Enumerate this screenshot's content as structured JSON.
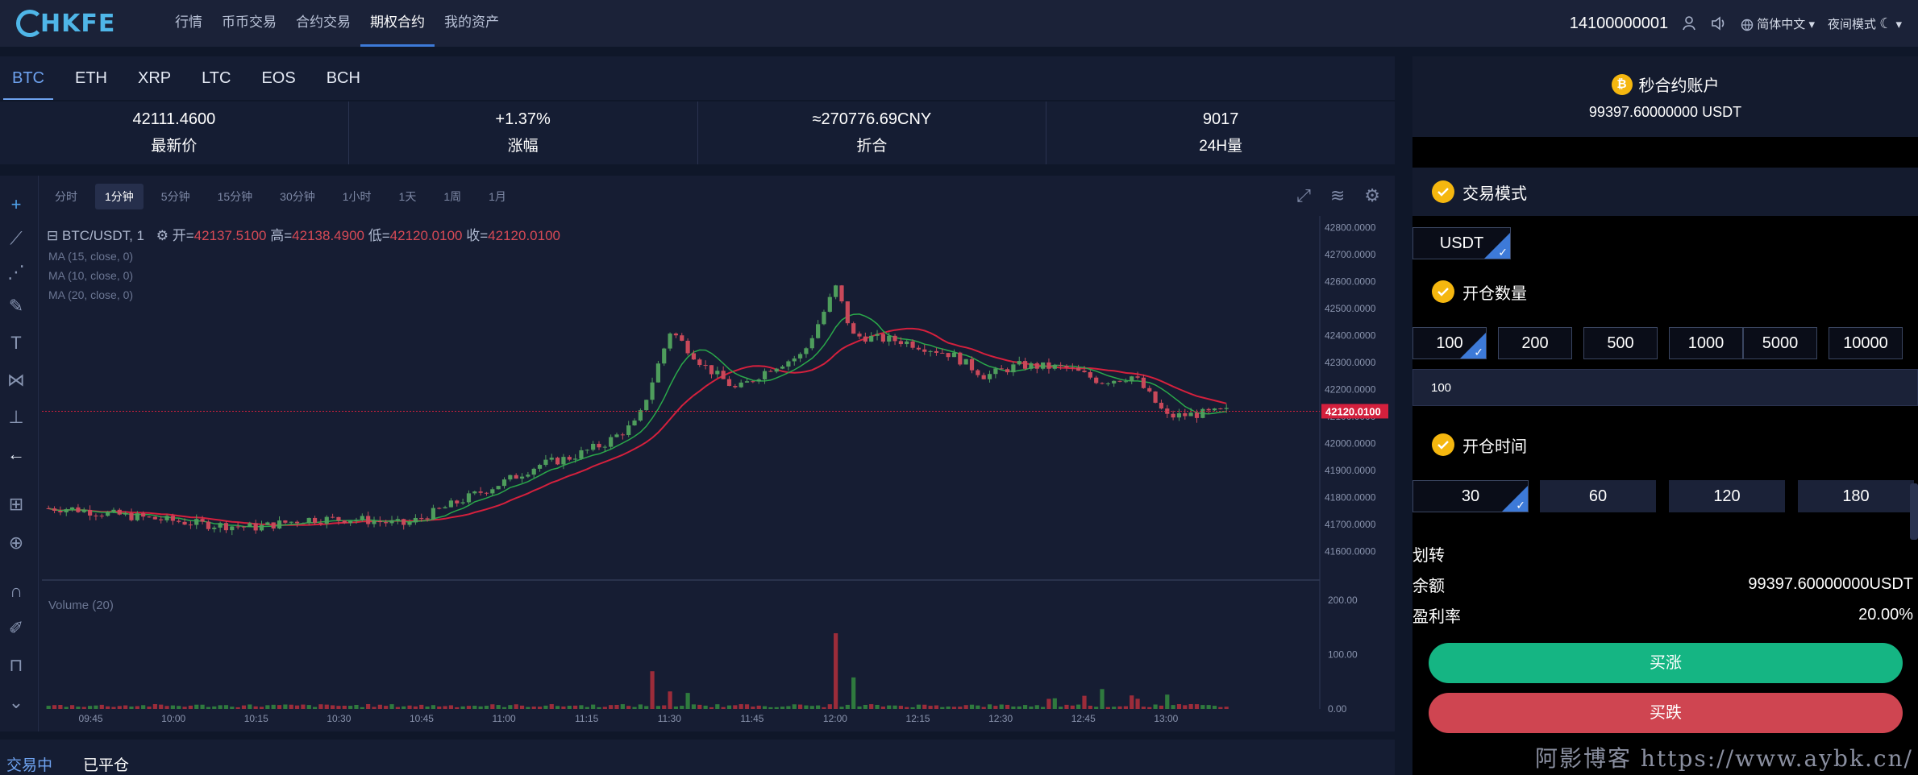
{
  "brand": {
    "logo_text": "HKFE"
  },
  "nav": [
    {
      "label": "行情"
    },
    {
      "label": "币币交易"
    },
    {
      "label": "合约交易"
    },
    {
      "label": "期权合约",
      "active": true
    },
    {
      "label": "我的资产"
    }
  ],
  "header": {
    "phone": "14100000001",
    "language": "简体中文",
    "night_mode": "夜间模式"
  },
  "coins": [
    "BTC",
    "ETH",
    "XRP",
    "LTC",
    "EOS",
    "BCH"
  ],
  "active_coin": "BTC",
  "stats": [
    {
      "value": "42111.4600",
      "label": "最新价"
    },
    {
      "value": "+1.37%",
      "label": "涨幅"
    },
    {
      "value": "≈270776.69CNY",
      "label": "折合"
    },
    {
      "value": "9017",
      "label": "24H量"
    }
  ],
  "chart_toolbar": {
    "intervals": [
      "分时",
      "1分钟",
      "5分钟",
      "15分钟",
      "30分钟",
      "1小时",
      "1天",
      "1周",
      "1月"
    ],
    "active_interval": "1分钟"
  },
  "chart_legend": {
    "symbol": "BTC/USDT, 1",
    "open_label": "开=",
    "open": "42137.5100",
    "high_label": "高=",
    "high": "42138.4900",
    "low_label": "低=",
    "low": "42120.0100",
    "close_label": "收=",
    "close": "42120.0100",
    "ma": [
      "MA (15, close, 0)",
      "MA (10, close, 0)",
      "MA (20, close, 0)"
    ],
    "volume": "Volume (20)"
  },
  "chart_data": {
    "type": "line",
    "x_ticks": [
      "09:45",
      "10:00",
      "10:15",
      "10:30",
      "10:45",
      "11:00",
      "11:15",
      "11:30",
      "11:45",
      "12:00",
      "12:15",
      "12:30",
      "12:45",
      "13:00"
    ],
    "y_ticks": [
      "42800.0000",
      "42700.0000",
      "42600.0000",
      "42500.0000",
      "42400.0000",
      "42300.0000",
      "42200.0000",
      "42100.0000",
      "42000.0000",
      "41900.0000",
      "41800.0000",
      "41700.0000",
      "41600.0000"
    ],
    "ylim": [
      41560,
      42820
    ],
    "current_price": "42120.0100",
    "volume_ticks": [
      "200.00",
      "100.00",
      "0.00"
    ],
    "volume_ylim": [
      0,
      210
    ],
    "price_path": [
      [
        9.68,
        41760
      ],
      [
        9.8,
        41740
      ],
      [
        9.95,
        41720
      ],
      [
        10.1,
        41700
      ],
      [
        10.25,
        41690
      ],
      [
        10.4,
        41720
      ],
      [
        10.55,
        41720
      ],
      [
        10.7,
        41700
      ],
      [
        10.85,
        41780
      ],
      [
        11.0,
        41860
      ],
      [
        11.1,
        41920
      ],
      [
        11.2,
        41950
      ],
      [
        11.3,
        42000
      ],
      [
        11.4,
        42080
      ],
      [
        11.5,
        42420
      ],
      [
        11.6,
        42290
      ],
      [
        11.7,
        42200
      ],
      [
        11.8,
        42280
      ],
      [
        11.9,
        42330
      ],
      [
        12.0,
        42580
      ],
      [
        12.05,
        42400
      ],
      [
        12.2,
        42380
      ],
      [
        12.35,
        42330
      ],
      [
        12.45,
        42250
      ],
      [
        12.55,
        42290
      ],
      [
        12.7,
        42280
      ],
      [
        12.8,
        42230
      ],
      [
        12.9,
        42250
      ],
      [
        13.0,
        42100
      ],
      [
        13.1,
        42110
      ],
      [
        13.18,
        42120
      ]
    ],
    "volume_bars": [
      [
        11.45,
        90
      ],
      [
        11.5,
        40
      ],
      [
        11.55,
        30
      ],
      [
        12.0,
        190
      ],
      [
        12.05,
        60
      ],
      [
        12.65,
        25
      ],
      [
        12.75,
        25
      ],
      [
        12.8,
        40
      ],
      [
        12.9,
        25
      ],
      [
        13.0,
        30
      ]
    ]
  },
  "account": {
    "title": "秒合约账户",
    "balance": "99397.60000000 USDT"
  },
  "trade_mode": {
    "title": "交易模式",
    "currency": "USDT"
  },
  "open_amount": {
    "title": "开仓数量",
    "options": [
      "100",
      "200",
      "500",
      "1000",
      "5000",
      "10000"
    ],
    "input_value": "100"
  },
  "open_time": {
    "title": "开仓时间",
    "options": [
      "30",
      "60",
      "120",
      "180"
    ]
  },
  "transfer_label": "划转",
  "balance_label": "余额",
  "balance_value": "99397.60000000USDT",
  "profit_label": "盈利率",
  "profit_value": "20.00%",
  "buy_up": "买涨",
  "buy_down": "买跌",
  "bottom_tabs": [
    "交易中",
    "已平仓"
  ],
  "watermark": "阿影博客 https://www.aybk.cn/"
}
